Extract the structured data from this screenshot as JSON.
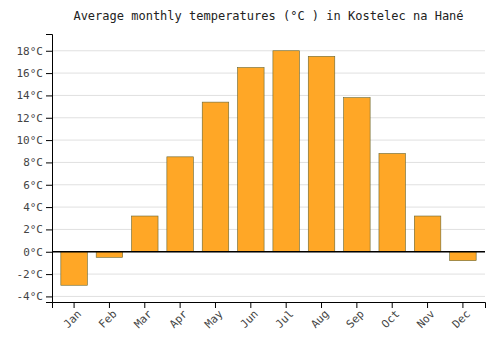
{
  "chart_data": {
    "type": "bar",
    "title": "Average monthly temperatures (°C ) in Kostelec na Hané",
    "categories": [
      "Jan",
      "Feb",
      "Mar",
      "Apr",
      "May",
      "Jun",
      "Jul",
      "Aug",
      "Sep",
      "Oct",
      "Nov",
      "Dec"
    ],
    "values": [
      -3.0,
      -0.5,
      3.2,
      8.5,
      13.4,
      16.5,
      18.0,
      17.5,
      13.8,
      8.8,
      3.2,
      -0.8
    ],
    "color": "#FFA726",
    "ylim": [
      -4.5,
      19.5
    ],
    "yticks": [
      {
        "value": -4,
        "label": "-4°C"
      },
      {
        "value": -2,
        "label": "-2°C"
      },
      {
        "value": 0,
        "label": "0°C"
      },
      {
        "value": 2,
        "label": "2°C"
      },
      {
        "value": 4,
        "label": "4°C"
      },
      {
        "value": 6,
        "label": "6°C"
      },
      {
        "value": 8,
        "label": "8°C"
      },
      {
        "value": 10,
        "label": "10°C"
      },
      {
        "value": 12,
        "label": "12°C"
      },
      {
        "value": 14,
        "label": "14°C"
      },
      {
        "value": 16,
        "label": "16°C"
      },
      {
        "value": 18,
        "label": "18°C"
      }
    ],
    "grid": true
  }
}
